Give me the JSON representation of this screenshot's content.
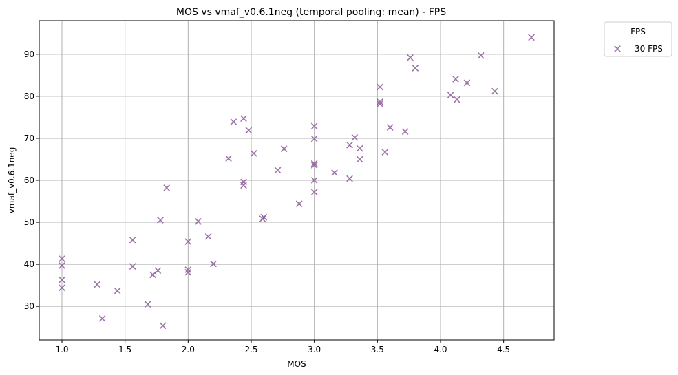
{
  "chart_data": {
    "type": "scatter",
    "title": "MOS vs vmaf_v0.6.1neg (temporal pooling: mean) - FPS",
    "xlabel": "MOS",
    "ylabel": "vmaf_v0.6.1neg",
    "xlim": [
      0.82,
      4.9
    ],
    "ylim": [
      22,
      98
    ],
    "xticks": [
      "1.0",
      "1.5",
      "2.0",
      "2.5",
      "3.0",
      "3.5",
      "4.0",
      "4.5"
    ],
    "yticks": [
      "30",
      "40",
      "50",
      "60",
      "70",
      "80",
      "90"
    ],
    "grid": true,
    "legend": {
      "title": "FPS",
      "position": "outside-top-right"
    },
    "series": [
      {
        "name": "30 FPS",
        "marker": "x",
        "color": "#8c5a9a",
        "x": [
          1.0,
          1.0,
          1.0,
          1.0,
          1.28,
          1.32,
          1.44,
          1.56,
          1.56,
          1.68,
          1.72,
          1.76,
          1.78,
          1.8,
          1.83,
          2.0,
          2.0,
          2.0,
          2.08,
          2.16,
          2.2,
          2.32,
          2.36,
          2.44,
          2.44,
          2.44,
          2.48,
          2.52,
          2.59,
          2.6,
          2.71,
          2.76,
          2.88,
          3.0,
          3.0,
          3.0,
          3.0,
          3.0,
          3.0,
          3.16,
          3.28,
          3.28,
          3.32,
          3.36,
          3.36,
          3.52,
          3.52,
          3.52,
          3.56,
          3.6,
          3.72,
          3.76,
          3.8,
          4.08,
          4.12,
          4.13,
          4.21,
          4.32,
          4.43,
          4.72
        ],
        "y": [
          41.3,
          39.7,
          36.3,
          34.4,
          35.2,
          27.1,
          33.7,
          45.8,
          39.5,
          30.5,
          37.5,
          38.5,
          50.5,
          25.4,
          58.2,
          45.4,
          38.7,
          38.1,
          50.2,
          46.6,
          40.1,
          65.2,
          73.9,
          74.7,
          59.6,
          58.8,
          71.9,
          66.4,
          50.8,
          51.2,
          62.4,
          67.5,
          54.4,
          72.9,
          69.9,
          64.0,
          63.6,
          60.0,
          57.2,
          61.8,
          68.4,
          60.4,
          70.2,
          67.6,
          65.0,
          82.2,
          78.7,
          78.2,
          66.7,
          72.6,
          71.6,
          89.2,
          86.7,
          80.3,
          84.1,
          79.2,
          83.2,
          89.7,
          81.2,
          94.0
        ]
      }
    ]
  }
}
